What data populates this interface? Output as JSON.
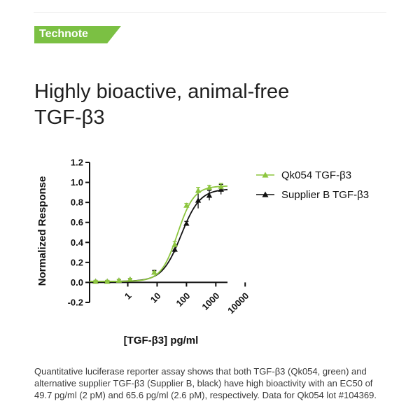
{
  "badge": {
    "label": "Technote"
  },
  "title": {
    "line1": "Highly bioactive, animal-free",
    "line2": "TGF-β3"
  },
  "caption": "Quantitative luciferase reporter assay shows that both TGF-β3 (Qk054, green) and alternative supplier TGF-β3 (Supplier B, black) have high bioactivity with an EC50 of 49.7 pg/ml (2 pM) and 65.6 pg/ml (2.6 pM), respectively. Data for Qk054 lot #104369.",
  "colors": {
    "accent": "#7bc043",
    "green_series": "#8dc63f",
    "black_series": "#111111"
  },
  "chart_data": {
    "type": "line",
    "xlabel": "[TGF-β3] pg/ml",
    "ylabel": "Normalized Response",
    "xscale": "log",
    "xlim": [
      0.05,
      2500
    ],
    "ylim": [
      -0.2,
      1.2
    ],
    "xticks": [
      1,
      10,
      100,
      1000,
      10000
    ],
    "xtick_labels": [
      "1",
      "10",
      "100",
      "1000",
      "10000"
    ],
    "yticks": [
      -0.2,
      0.0,
      0.2,
      0.4,
      0.6,
      0.8,
      1.0,
      1.2
    ],
    "ytick_labels": [
      "-0.2",
      "0.0",
      "0.2",
      "0.4",
      "0.6",
      "0.8",
      "1.0",
      "1.2"
    ],
    "legend_position": "top-right",
    "series": [
      {
        "name": "Qk054 TGF-β3",
        "color": "#8dc63f",
        "marker": "triangle",
        "ec50": 49.7,
        "points": [
          {
            "x": 0.08,
            "y": 0.01,
            "err": 0.01
          },
          {
            "x": 0.2,
            "y": 0.01,
            "err": 0.01
          },
          {
            "x": 0.5,
            "y": 0.02,
            "err": 0.01
          },
          {
            "x": 1.2,
            "y": 0.03,
            "err": 0.01
          },
          {
            "x": 8,
            "y": 0.1,
            "err": 0.01
          },
          {
            "x": 40,
            "y": 0.38,
            "err": 0.03
          },
          {
            "x": 100,
            "y": 0.77,
            "err": 0.02
          },
          {
            "x": 250,
            "y": 0.92,
            "err": 0.03
          },
          {
            "x": 600,
            "y": 0.95,
            "err": 0.02
          },
          {
            "x": 1500,
            "y": 0.96,
            "err": 0.03
          }
        ]
      },
      {
        "name": "Supplier B TGF-β3",
        "color": "#111111",
        "marker": "triangle",
        "ec50": 65.6,
        "points": [
          {
            "x": 0.08,
            "y": 0.01,
            "err": 0.01
          },
          {
            "x": 0.2,
            "y": 0.01,
            "err": 0.01
          },
          {
            "x": 0.5,
            "y": 0.02,
            "err": 0.01
          },
          {
            "x": 1.2,
            "y": 0.03,
            "err": 0.01
          },
          {
            "x": 8,
            "y": 0.1,
            "err": 0.02
          },
          {
            "x": 40,
            "y": 0.33,
            "err": 0.03
          },
          {
            "x": 100,
            "y": 0.59,
            "err": 0.02
          },
          {
            "x": 250,
            "y": 0.82,
            "err": 0.08
          },
          {
            "x": 600,
            "y": 0.87,
            "err": 0.05
          },
          {
            "x": 1500,
            "y": 0.93,
            "err": 0.05
          }
        ]
      }
    ]
  }
}
